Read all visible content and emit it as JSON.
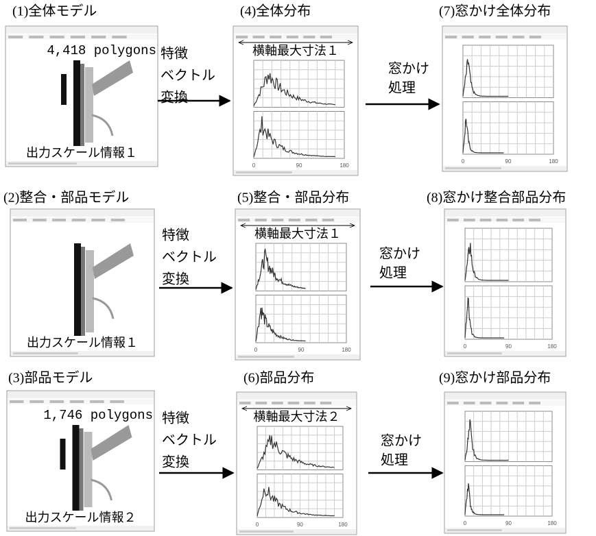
{
  "rows": [
    {
      "model": {
        "label": "(1)全体モデル",
        "polygons": "4,418 polygons",
        "scale_info": "出力スケール情報１"
      },
      "transform": [
        "特徴",
        "ベクトル",
        "変換"
      ],
      "distribution": {
        "label": "(4)全体分布",
        "axis_note": "横軸最大寸法１"
      },
      "window": [
        "窓かけ",
        "処理"
      ],
      "windowed": {
        "label": "(7)窓かけ全体分布"
      }
    },
    {
      "model": {
        "label": "(2)整合・部品モデル",
        "scale_info": "出力スケール情報１"
      },
      "transform": [
        "特徴",
        "ベクトル",
        "変換"
      ],
      "distribution": {
        "label": "(5)整合・部品分布",
        "axis_note": "横軸最大寸法１"
      },
      "window": [
        "窓かけ",
        "処理"
      ],
      "windowed": {
        "label": "(8)窓かけ整合部品分布"
      }
    },
    {
      "model": {
        "label": "(3)部品モデル",
        "polygons": "1,746 polygons",
        "scale_info": "出力スケール情報２"
      },
      "transform": [
        "特徴",
        "ベクトル",
        "変換"
      ],
      "distribution": {
        "label": "(6)部品分布",
        "axis_note": "横軸最大寸法２"
      },
      "window": [
        "窓かけ",
        "処理"
      ],
      "windowed": {
        "label": "(9)窓かけ部品分布"
      }
    }
  ],
  "axis_ticks": [
    "0",
    "90",
    "180"
  ]
}
